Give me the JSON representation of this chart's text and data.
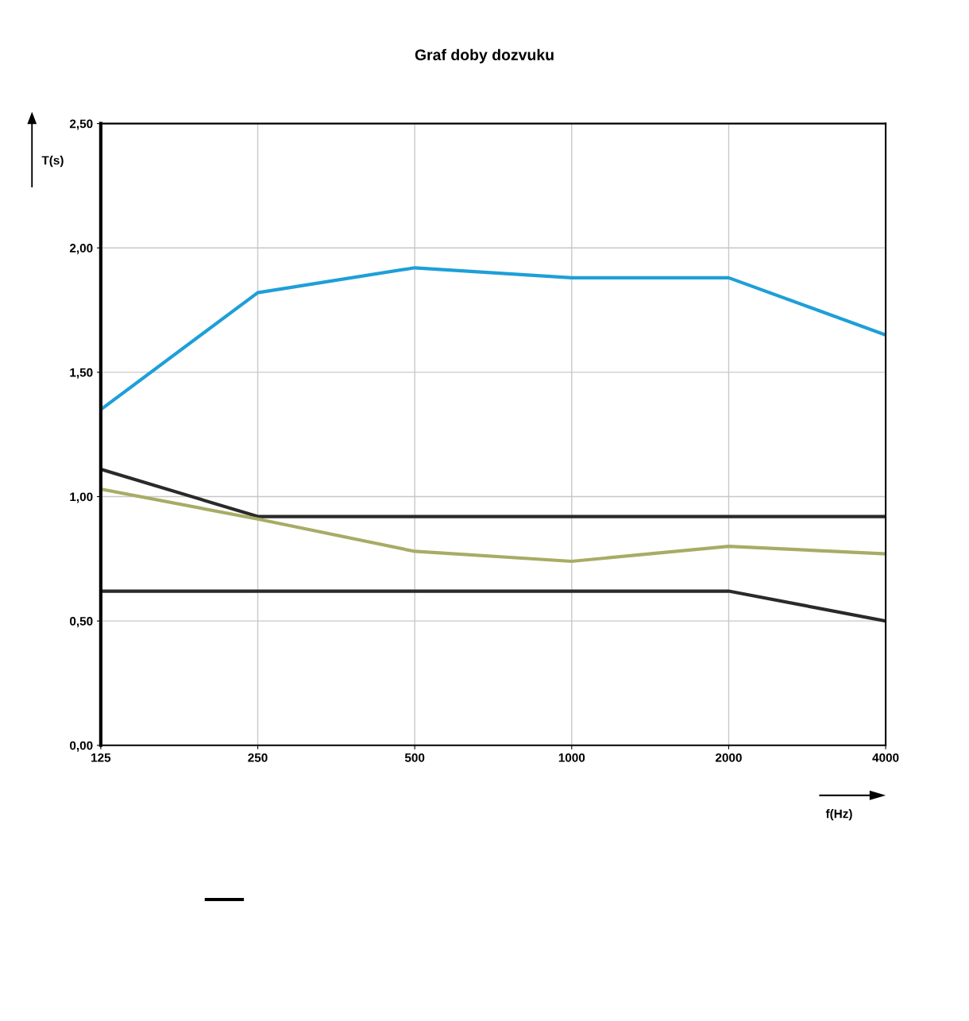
{
  "chart_data": {
    "type": "line",
    "title": "Graf doby dozvuku",
    "xlabel": "f(Hz)",
    "ylabel": "T(s)",
    "categories": [
      "125",
      "250",
      "500",
      "1000",
      "2000",
      "4000"
    ],
    "series": [
      {
        "color": "#1e9fd8",
        "values": [
          1.35,
          1.82,
          1.92,
          1.88,
          1.88,
          1.65
        ]
      },
      {
        "color": "#2a2a2a",
        "values": [
          1.11,
          0.92,
          0.92,
          0.92,
          0.92,
          0.92
        ]
      },
      {
        "color": "#a9ab66",
        "values": [
          1.03,
          0.91,
          0.78,
          0.74,
          0.8,
          0.77
        ]
      },
      {
        "color": "#2a2a2a",
        "values": [
          0.62,
          0.62,
          0.62,
          0.62,
          0.62,
          0.5
        ]
      }
    ],
    "ylim": [
      0,
      2.5
    ],
    "yticks": [
      {
        "value": 0,
        "label": "0,00"
      },
      {
        "value": 0.5,
        "label": "0,50"
      },
      {
        "value": 1,
        "label": "1,00"
      },
      {
        "value": 1.5,
        "label": "1,50"
      },
      {
        "value": 2,
        "label": "2,00"
      },
      {
        "value": 2.5,
        "label": "2,50"
      }
    ],
    "grid": true,
    "marker": "none",
    "line_style": "solid"
  }
}
